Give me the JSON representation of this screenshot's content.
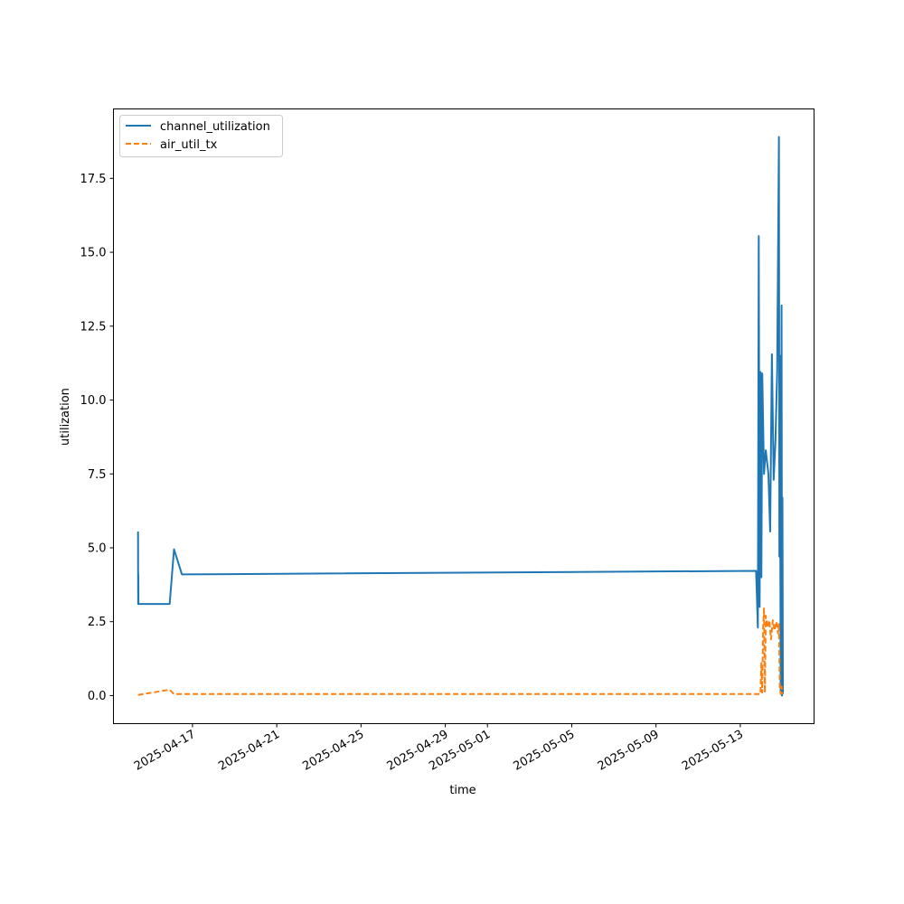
{
  "chart_data": {
    "type": "line",
    "title": "",
    "xlabel": "time",
    "ylabel": "utilization",
    "x_axis_type": "date",
    "xlim": [
      "2025-04-13T06:00",
      "2025-05-16T12:00"
    ],
    "ylim": [
      -0.95,
      19.85
    ],
    "x_ticks": [
      "2025-04-17",
      "2025-04-21",
      "2025-04-25",
      "2025-04-29",
      "2025-05-01",
      "2025-05-05",
      "2025-05-09",
      "2025-05-13"
    ],
    "y_ticks": [
      0.0,
      2.5,
      5.0,
      7.5,
      10.0,
      12.5,
      15.0,
      17.5
    ],
    "y_tick_labels": [
      "0.0",
      "2.5",
      "5.0",
      "7.5",
      "10.0",
      "12.5",
      "15.0",
      "17.5"
    ],
    "grid": false,
    "legend_position": "upper-left",
    "colors": {
      "channel_utilization": "#1f77b4",
      "air_util_tx": "#ff7f0e"
    },
    "series": [
      {
        "name": "channel_utilization",
        "style": "solid",
        "points": [
          [
            "2025-04-14T10:00",
            5.55
          ],
          [
            "2025-04-14T10:10",
            3.1
          ],
          [
            "2025-04-14T10:20",
            4.12
          ],
          [
            "2025-04-14T10:30",
            3.1
          ],
          [
            "2025-04-15T22:00",
            3.1
          ],
          [
            "2025-04-16T03:00",
            4.95
          ],
          [
            "2025-04-16T12:00",
            4.1
          ],
          [
            "2025-05-13T18:00",
            4.22
          ],
          [
            "2025-05-13T20:00",
            2.3
          ],
          [
            "2025-05-13T21:00",
            15.55
          ],
          [
            "2025-05-13T22:00",
            3.0
          ],
          [
            "2025-05-13T23:00",
            10.95
          ],
          [
            "2025-05-14T00:00",
            4.0
          ],
          [
            "2025-05-14T01:00",
            10.9
          ],
          [
            "2025-05-14T03:00",
            7.5
          ],
          [
            "2025-05-14T05:00",
            8.3
          ],
          [
            "2025-05-14T08:00",
            7.5
          ],
          [
            "2025-05-14T10:00",
            5.55
          ],
          [
            "2025-05-14T12:00",
            11.55
          ],
          [
            "2025-05-14T14:00",
            7.3
          ],
          [
            "2025-05-14T16:00",
            8.6
          ],
          [
            "2025-05-14T18:00",
            11.0
          ],
          [
            "2025-05-14T20:00",
            18.9
          ],
          [
            "2025-05-14T20:30",
            4.7
          ],
          [
            "2025-05-14T21:00",
            11.5
          ],
          [
            "2025-05-14T22:00",
            0.1
          ],
          [
            "2025-05-14T22:30",
            5.3
          ],
          [
            "2025-05-14T23:00",
            13.2
          ],
          [
            "2025-05-14T23:30",
            0.0
          ],
          [
            "2025-05-15T00:00",
            6.7
          ],
          [
            "2025-05-15T00:30",
            0.05
          ]
        ]
      },
      {
        "name": "air_util_tx",
        "style": "dashed",
        "points": [
          [
            "2025-04-14T10:00",
            0.02
          ],
          [
            "2025-04-15T22:00",
            0.2
          ],
          [
            "2025-04-16T03:00",
            0.05
          ],
          [
            "2025-05-13T23:00",
            0.05
          ],
          [
            "2025-05-14T00:00",
            1.1
          ],
          [
            "2025-05-14T01:00",
            0.1
          ],
          [
            "2025-05-14T02:00",
            2.3
          ],
          [
            "2025-05-14T03:00",
            2.95
          ],
          [
            "2025-05-14T04:00",
            0.1
          ],
          [
            "2025-05-14T05:00",
            2.7
          ],
          [
            "2025-05-14T07:00",
            2.3
          ],
          [
            "2025-05-14T09:00",
            2.55
          ],
          [
            "2025-05-14T11:00",
            1.9
          ],
          [
            "2025-05-14T13:00",
            2.55
          ],
          [
            "2025-05-14T15:00",
            2.2
          ],
          [
            "2025-05-14T17:00",
            2.5
          ],
          [
            "2025-05-14T19:00",
            2.1
          ],
          [
            "2025-05-14T20:00",
            2.45
          ],
          [
            "2025-05-14T21:00",
            0.3
          ],
          [
            "2025-05-14T22:00",
            0.05
          ],
          [
            "2025-05-14T23:00",
            0.3
          ],
          [
            "2025-05-15T00:00",
            0.05
          ]
        ]
      }
    ]
  }
}
